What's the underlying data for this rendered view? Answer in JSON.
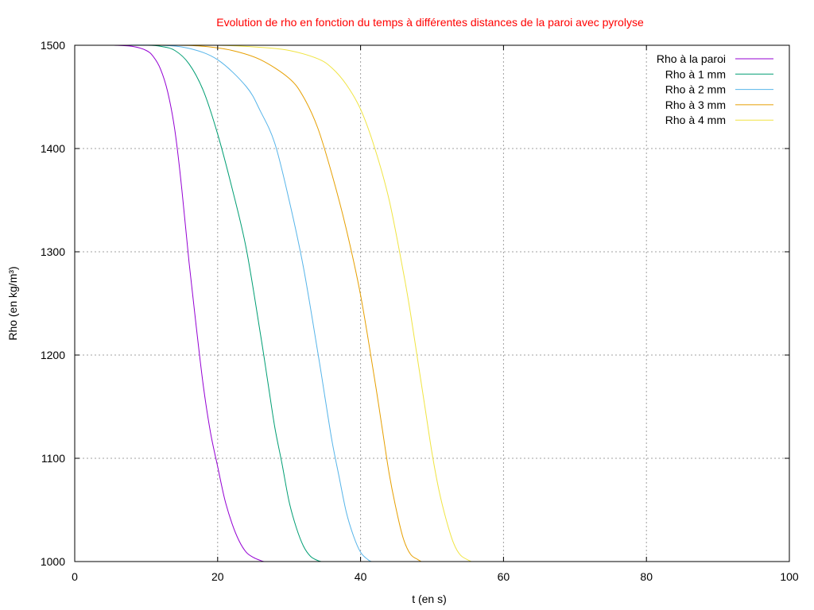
{
  "chart_data": {
    "type": "line",
    "title": "Evolution de rho en fonction du temps à différentes distances de la paroi avec pyrolyse",
    "title_color": "#ff0000",
    "xlabel": "t (en s)",
    "ylabel": "Rho (en kg/m³)",
    "xlim": [
      0,
      100
    ],
    "ylim": [
      1000,
      1500
    ],
    "xticks": [
      0,
      20,
      40,
      60,
      80,
      100
    ],
    "yticks": [
      1000,
      1100,
      1200,
      1300,
      1400,
      1500
    ],
    "xtick_labels": [
      "0",
      "20",
      "40",
      "60",
      "80",
      "100"
    ],
    "ytick_labels": [
      "1000",
      "1100",
      "1200",
      "1300",
      "1400",
      "1500"
    ],
    "grid": true,
    "legend_position": "top-right",
    "series": [
      {
        "name": "Rho à la paroi",
        "color": "#9400d3",
        "x": [
          5.5,
          8,
          10,
          11,
          12,
          13,
          14,
          15,
          16,
          17,
          18,
          19,
          20,
          21,
          22,
          23,
          24,
          25,
          26,
          26.5
        ],
        "y": [
          1500,
          1499,
          1495,
          1489,
          1477,
          1455,
          1418,
          1360,
          1290,
          1228,
          1170,
          1125,
          1092,
          1060,
          1037,
          1020,
          1009,
          1004,
          1001,
          1000
        ]
      },
      {
        "name": "Rho à 1 mm",
        "color": "#009e73",
        "x": [
          6.5,
          10,
          12,
          14,
          16,
          18,
          20,
          22,
          24,
          26,
          27,
          28,
          29,
          30,
          31,
          32,
          33,
          34,
          34.5
        ],
        "y": [
          1500,
          1500,
          1499,
          1495,
          1482,
          1456,
          1414,
          1362,
          1303,
          1220,
          1175,
          1130,
          1095,
          1058,
          1033,
          1015,
          1005,
          1001,
          1000
        ]
      },
      {
        "name": "Rho à 2 mm",
        "color": "#56b4e9",
        "x": [
          7,
          12,
          16,
          20,
          24,
          26,
          28,
          30,
          32,
          34,
          35,
          36,
          37,
          38,
          39,
          40,
          41,
          41.5
        ],
        "y": [
          1500,
          1500,
          1497,
          1486,
          1460,
          1436,
          1405,
          1350,
          1285,
          1203,
          1160,
          1117,
          1082,
          1048,
          1025,
          1009,
          1002,
          1000
        ]
      },
      {
        "name": "Rho à 3 mm",
        "color": "#e69f00",
        "x": [
          8,
          14,
          18,
          22,
          26,
          30,
          32,
          34,
          36,
          38,
          40,
          42,
          43,
          44,
          45,
          46,
          47,
          48,
          48.5
        ],
        "y": [
          1500,
          1500,
          1499,
          1495,
          1486,
          1468,
          1450,
          1420,
          1375,
          1322,
          1258,
          1175,
          1130,
          1085,
          1050,
          1022,
          1007,
          1002,
          1000
        ]
      },
      {
        "name": "Rho à 4 mm",
        "color": "#f0e442",
        "x": [
          12,
          20,
          26,
          30,
          34,
          36,
          38,
          40,
          42,
          44,
          46,
          47,
          48,
          49,
          50,
          51,
          52,
          53,
          54,
          55.5
        ],
        "y": [
          1500,
          1500,
          1498,
          1495,
          1487,
          1478,
          1462,
          1438,
          1400,
          1350,
          1280,
          1240,
          1195,
          1150,
          1105,
          1068,
          1040,
          1018,
          1006,
          1000
        ]
      }
    ]
  }
}
